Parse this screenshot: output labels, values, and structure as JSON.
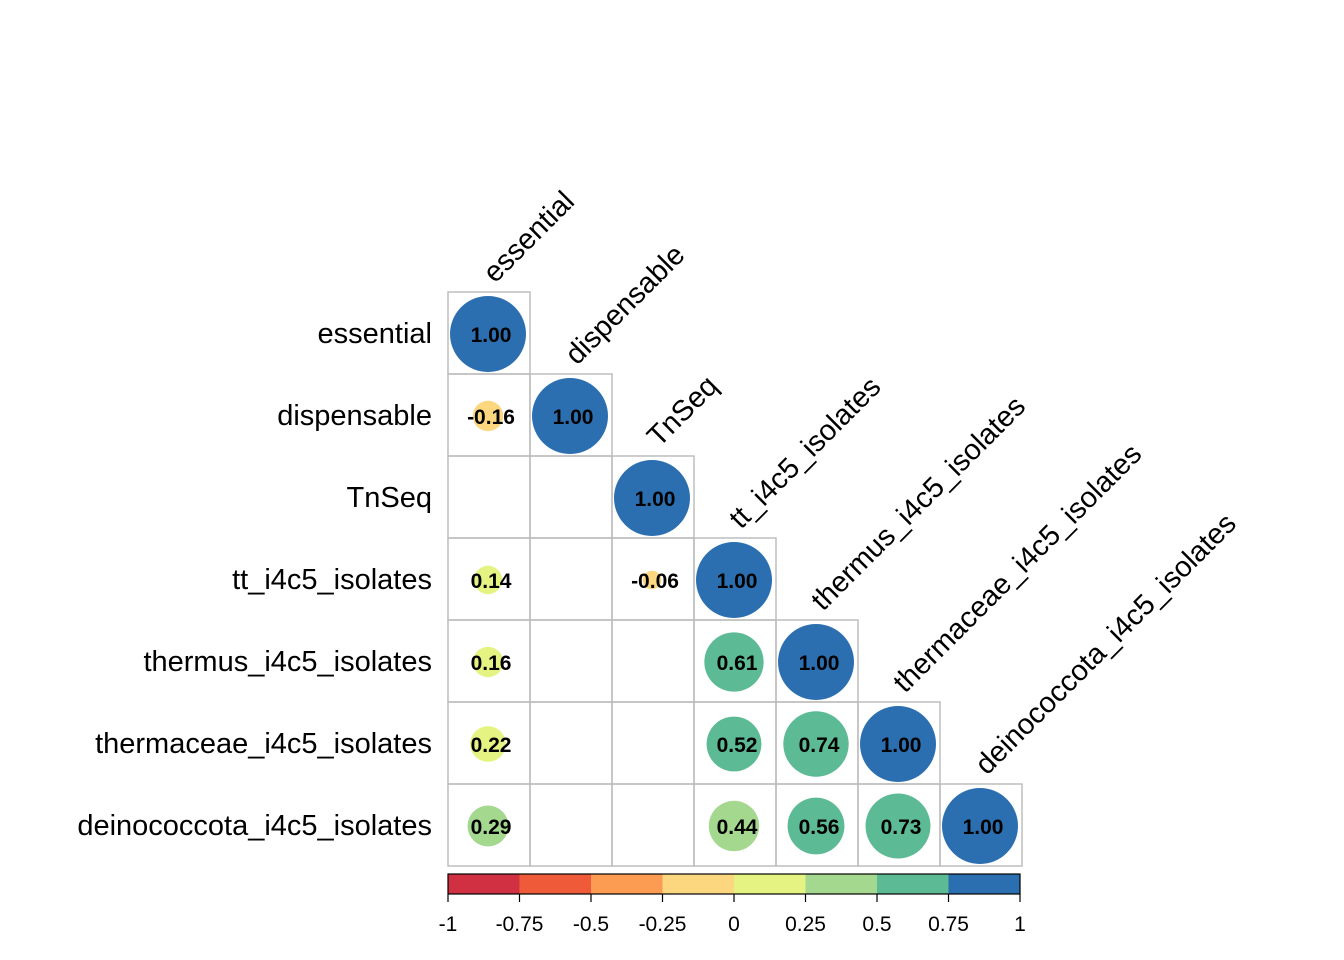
{
  "chart_data": {
    "type": "heatmap",
    "style": "lower-triangle correlation matrix, circle glyphs sized by |r|",
    "variables": [
      "essential",
      "dispensable",
      "TnSeq",
      "tt_i4c5_isolates",
      "thermus_i4c5_isolates",
      "thermaceae_i4c5_isolates",
      "deinococcota_i4c5_isolates"
    ],
    "matrix": [
      [
        1.0,
        null,
        null,
        null,
        null,
        null,
        null
      ],
      [
        -0.16,
        1.0,
        null,
        null,
        null,
        null,
        null
      ],
      [
        null,
        null,
        1.0,
        null,
        null,
        null,
        null
      ],
      [
        0.14,
        null,
        -0.06,
        1.0,
        null,
        null,
        null
      ],
      [
        0.16,
        null,
        null,
        0.61,
        1.0,
        null,
        null
      ],
      [
        0.22,
        null,
        null,
        0.52,
        0.74,
        1.0,
        null
      ],
      [
        0.29,
        null,
        null,
        0.44,
        0.56,
        0.73,
        1.0
      ]
    ],
    "labels": [
      [
        "1.00",
        "",
        "",
        "",
        "",
        "",
        ""
      ],
      [
        "-0.16",
        "1.00",
        "",
        "",
        "",
        "",
        ""
      ],
      [
        "",
        "",
        "1.00",
        "",
        "",
        "",
        ""
      ],
      [
        "0.14",
        "",
        "-0.06",
        "1.00",
        "",
        "",
        ""
      ],
      [
        "0.16",
        "",
        "",
        "0.61",
        "1.00",
        "",
        ""
      ],
      [
        "0.22",
        "",
        "",
        "0.52",
        "0.74",
        "1.00",
        ""
      ],
      [
        "0.29",
        "",
        "",
        "0.44",
        "0.56",
        "0.73",
        "1.00"
      ]
    ],
    "colorbar": {
      "range": [
        -1,
        1
      ],
      "ticks": [
        "-1",
        "-0.75",
        "-0.5",
        "-0.25",
        "0",
        "0.25",
        "0.5",
        "0.75",
        "1"
      ],
      "colors": [
        "#d13042",
        "#ef5b38",
        "#fb9c52",
        "#fcd77f",
        "#e5f383",
        "#a4d88f",
        "#5cba95",
        "#2c6fb0"
      ],
      "placement": "bottom"
    }
  }
}
